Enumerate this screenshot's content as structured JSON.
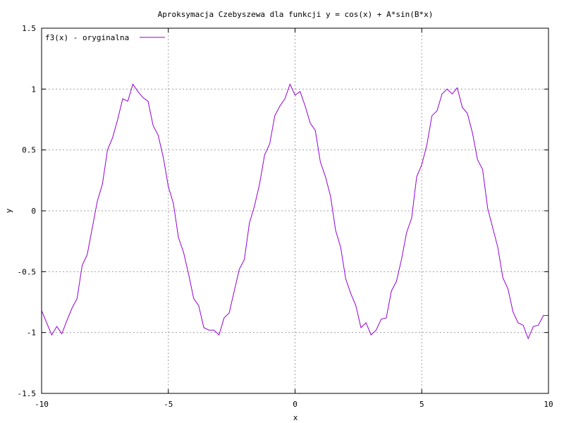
{
  "chart_data": {
    "type": "line",
    "title": "Aproksymacja Czebyszewa dla funkcji y = cos(x) + A*sin(B*x)",
    "xlabel": "x",
    "ylabel": "y",
    "xlim": [
      -10,
      10
    ],
    "ylim": [
      -1.5,
      1.5
    ],
    "xticks": [
      -10,
      -5,
      0,
      5,
      10
    ],
    "xtick_labels": [
      "-10",
      "-5",
      "0",
      "5",
      "10"
    ],
    "yticks": [
      -1.5,
      -1,
      -0.5,
      0,
      0.5,
      1,
      1.5
    ],
    "ytick_labels": [
      "-1.5",
      "-1",
      "-0.5",
      "0",
      "0.5",
      "1",
      "1.5"
    ],
    "grid": true,
    "legend": "top-left",
    "series": [
      {
        "name": "f3(x) - oryginalna",
        "color": "#9400d3",
        "x": [
          -10.0,
          -9.6,
          -9.4,
          -9.2,
          -9.0,
          -8.8,
          -8.6,
          -8.4,
          -8.2,
          -8.0,
          -7.8,
          -7.6,
          -7.4,
          -7.2,
          -7.0,
          -6.8,
          -6.6,
          -6.4,
          -6.2,
          -6.0,
          -5.8,
          -5.6,
          -5.4,
          -5.2,
          -5.0,
          -4.8,
          -4.6,
          -4.4,
          -4.2,
          -4.0,
          -3.8,
          -3.6,
          -3.4,
          -3.2,
          -3.0,
          -2.8,
          -2.6,
          -2.4,
          -2.2,
          -2.0,
          -1.8,
          -1.6,
          -1.4,
          -1.2,
          -1.0,
          -0.8,
          -0.6,
          -0.4,
          -0.2,
          0.0,
          0.2,
          0.4,
          0.6,
          0.8,
          1.0,
          1.2,
          1.4,
          1.6,
          1.8,
          2.0,
          2.2,
          2.4,
          2.6,
          2.8,
          3.0,
          3.2,
          3.4,
          3.6,
          3.8,
          4.0,
          4.2,
          4.4,
          4.6,
          4.8,
          5.0,
          5.2,
          5.4,
          5.6,
          5.8,
          6.0,
          6.2,
          6.4,
          6.6,
          6.8,
          7.0,
          7.2,
          7.4,
          7.6,
          7.8,
          8.0,
          8.2,
          8.4,
          8.6,
          8.8,
          9.0,
          9.2,
          9.4,
          9.6,
          9.8,
          10.0
        ],
        "y": [
          -0.82,
          -1.02,
          -0.95,
          -1.01,
          -0.9,
          -0.8,
          -0.72,
          -0.45,
          -0.36,
          -0.14,
          0.08,
          0.22,
          0.5,
          0.6,
          0.75,
          0.92,
          0.9,
          1.04,
          0.98,
          0.93,
          0.9,
          0.7,
          0.62,
          0.44,
          0.2,
          0.06,
          -0.22,
          -0.34,
          -0.52,
          -0.72,
          -0.78,
          -0.96,
          -0.98,
          -0.98,
          -1.02,
          -0.88,
          -0.84,
          -0.66,
          -0.48,
          -0.4,
          -0.1,
          0.04,
          0.22,
          0.46,
          0.55,
          0.78,
          0.86,
          0.92,
          1.04,
          0.95,
          0.98,
          0.86,
          0.72,
          0.66,
          0.4,
          0.28,
          0.12,
          -0.16,
          -0.3,
          -0.56,
          -0.68,
          -0.78,
          -0.96,
          -0.92,
          -1.02,
          -0.98,
          -0.89,
          -0.88,
          -0.66,
          -0.58,
          -0.4,
          -0.18,
          -0.06,
          0.28,
          0.38,
          0.54,
          0.78,
          0.82,
          0.96,
          1.0,
          0.96,
          1.01,
          0.85,
          0.8,
          0.64,
          0.42,
          0.34,
          0.02,
          -0.14,
          -0.3,
          -0.55,
          -0.64,
          -0.83,
          -0.92,
          -0.94,
          -1.05,
          -0.95,
          -0.94,
          -0.86,
          -0.86
        ]
      }
    ]
  }
}
